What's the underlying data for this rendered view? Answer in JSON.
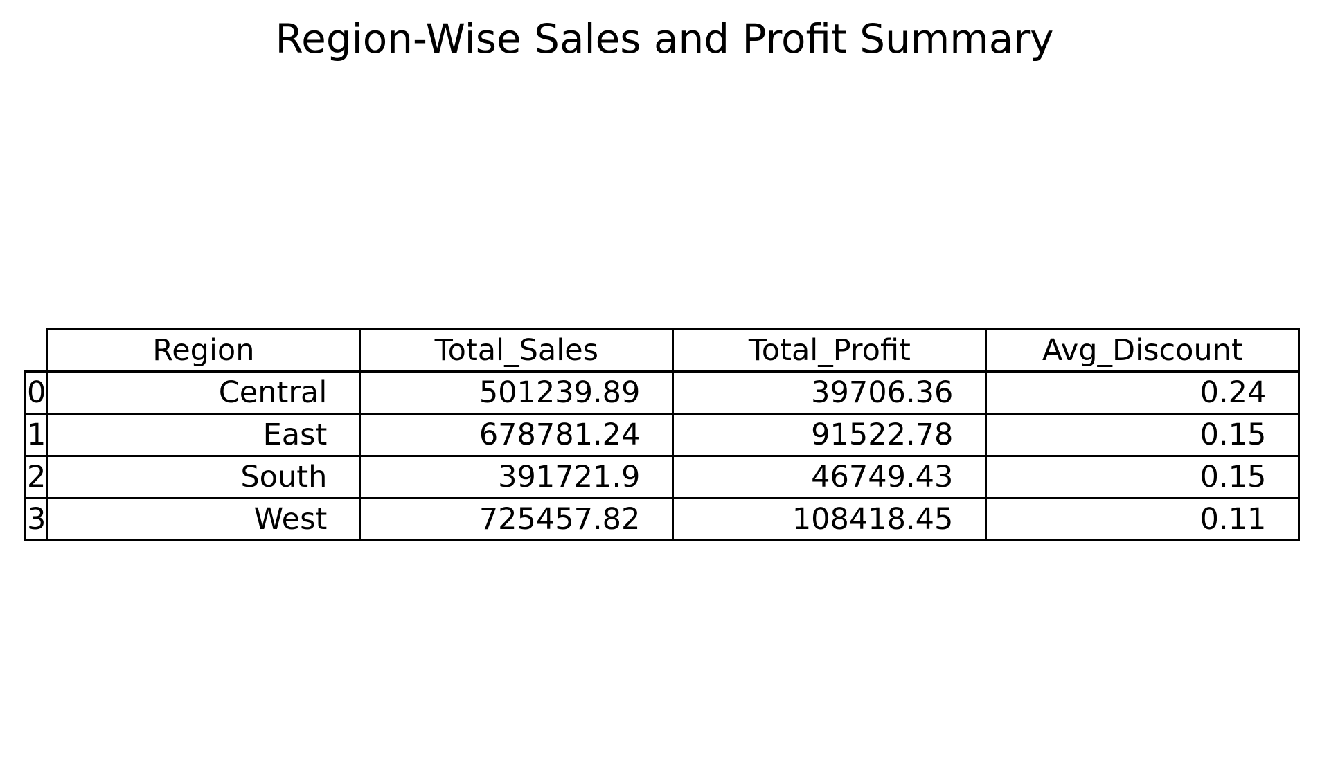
{
  "chart_data": {
    "type": "table",
    "title": "Region-Wise Sales and Profit Summary",
    "columns": [
      "Region",
      "Total_Sales",
      "Total_Profit",
      "Avg_Discount"
    ],
    "row_labels": [
      "0",
      "1",
      "2",
      "3"
    ],
    "rows": [
      [
        "Central",
        "501239.89",
        "39706.36",
        "0.24"
      ],
      [
        "East",
        "678781.24",
        "91522.78",
        "0.15"
      ],
      [
        "South",
        "391721.9",
        "46749.43",
        "0.15"
      ],
      [
        "West",
        "725457.82",
        "108418.45",
        "0.11"
      ]
    ]
  }
}
